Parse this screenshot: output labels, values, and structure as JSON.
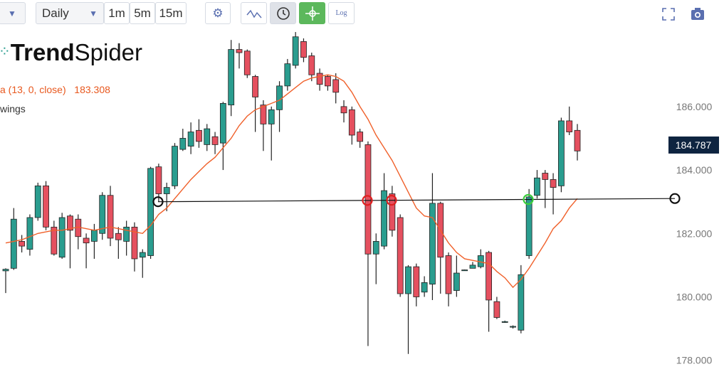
{
  "toolbar": {
    "timeframe": "Daily",
    "intervals": [
      "1m",
      "5m",
      "15m"
    ],
    "log": "Log"
  },
  "logo": {
    "bold": "Trend",
    "light": "Spider"
  },
  "legend": {
    "indicator": "a (13, 0, close)",
    "indicator_value": 183.308,
    "drawings": "wings"
  },
  "chart_data": {
    "type": "candlestick",
    "open": [
      180.82,
      180.9,
      181.75,
      181.5,
      182.5,
      183.5,
      182.2,
      181.25,
      182.55,
      182.45,
      181.85,
      181.75,
      182.0,
      183.2,
      182.0,
      181.75,
      182.2,
      181.25,
      181.3,
      184.1,
      183.25,
      183.5,
      184.65,
      184.75,
      185.25,
      184.8,
      185.05,
      184.85,
      186.05,
      187.8,
      187.75,
      186.95,
      186.05,
      185.45,
      185.9,
      186.65,
      187.3,
      188.05,
      187.6,
      187.05,
      186.95,
      186.85,
      186.0,
      185.9,
      185.2,
      184.8,
      181.35,
      181.6,
      183.25,
      182.5,
      180.1,
      180.95,
      180.15,
      180.4,
      182.95,
      181.3,
      180.2,
      180.83,
      180.9,
      180.95,
      181.4,
      179.85,
      179.2,
      179.05,
      178.95,
      181.3,
      183.2,
      183.9,
      183.7,
      183.5,
      185.55,
      185.25
    ],
    "high": [
      180.9,
      182.8,
      181.95,
      182.6,
      183.6,
      183.65,
      182.4,
      182.65,
      182.6,
      182.6,
      182.0,
      182.3,
      183.3,
      183.5,
      182.2,
      182.4,
      182.35,
      181.5,
      184.1,
      184.2,
      183.6,
      184.85,
      185.3,
      185.5,
      185.6,
      185.45,
      185.2,
      186.15,
      188.1,
      188.0,
      187.8,
      187.0,
      186.2,
      186.0,
      186.8,
      187.5,
      188.35,
      188.15,
      187.7,
      187.2,
      187.0,
      187.05,
      186.2,
      186.0,
      185.3,
      184.9,
      182.0,
      183.9,
      183.5,
      182.6,
      181.0,
      181.05,
      180.65,
      183.9,
      183.0,
      181.4,
      181.3,
      180.86,
      181.1,
      181.5,
      181.45,
      180.0,
      179.25,
      179.1,
      181.0,
      183.4,
      184.0,
      184.0,
      183.9,
      185.65,
      186.0,
      185.45
    ],
    "low": [
      180.12,
      180.85,
      181.4,
      181.3,
      182.4,
      182.1,
      181.3,
      181.2,
      180.9,
      181.5,
      180.9,
      181.2,
      181.8,
      181.6,
      181.2,
      181.3,
      180.8,
      180.6,
      181.2,
      183.0,
      182.7,
      183.4,
      184.6,
      184.5,
      184.7,
      184.6,
      184.5,
      184.0,
      185.7,
      187.2,
      186.9,
      185.2,
      184.6,
      184.3,
      185.2,
      186.5,
      187.2,
      187.4,
      186.8,
      186.5,
      186.5,
      186.1,
      185.5,
      184.8,
      184.7,
      178.45,
      180.4,
      181.5,
      181.9,
      180.0,
      178.2,
      179.7,
      180.0,
      179.9,
      180.1,
      179.7,
      180.0,
      180.82,
      180.9,
      180.9,
      178.9,
      179.3,
      179.18,
      179.0,
      178.85,
      181.2,
      183.1,
      182.8,
      182.6,
      183.3,
      185.1,
      184.3
    ],
    "close": [
      180.87,
      182.45,
      181.6,
      182.5,
      183.5,
      182.2,
      181.35,
      182.5,
      182.1,
      181.9,
      181.7,
      182.1,
      183.2,
      181.85,
      181.8,
      182.2,
      181.2,
      181.4,
      184.05,
      183.25,
      183.45,
      184.75,
      185.0,
      185.2,
      184.9,
      185.3,
      184.8,
      186.1,
      187.8,
      187.7,
      187.0,
      186.3,
      185.45,
      185.9,
      186.65,
      187.35,
      188.2,
      187.55,
      187.0,
      186.7,
      186.65,
      186.45,
      185.8,
      185.1,
      184.9,
      181.35,
      181.75,
      183.35,
      182.1,
      180.1,
      180.95,
      180.0,
      180.45,
      182.95,
      181.25,
      180.1,
      180.75,
      180.85,
      181.0,
      181.3,
      179.9,
      179.35,
      179.22,
      179.07,
      180.7,
      183.15,
      183.75,
      183.7,
      183.45,
      185.55,
      185.2,
      184.6
    ],
    "sma": [
      181.7,
      181.75,
      181.8,
      181.9,
      182.0,
      182.05,
      182.1,
      182.1,
      182.15,
      182.2,
      182.15,
      182.1,
      182.15,
      182.2,
      182.15,
      182.1,
      182.05,
      182.0,
      182.25,
      182.6,
      182.8,
      183.1,
      183.4,
      183.7,
      183.95,
      184.2,
      184.4,
      184.7,
      185.0,
      185.4,
      185.7,
      185.9,
      186.0,
      186.1,
      186.2,
      186.4,
      186.6,
      186.8,
      186.9,
      186.95,
      187.0,
      186.95,
      186.8,
      186.45,
      186.0,
      185.6,
      185.1,
      184.7,
      184.3,
      183.8,
      183.3,
      182.8,
      182.55,
      182.5,
      182.1,
      181.7,
      181.4,
      181.2,
      181.15,
      181.1,
      181.05,
      180.8,
      180.6,
      180.3,
      180.55,
      180.9,
      181.3,
      181.7,
      182.15,
      182.4,
      182.8,
      183.1
    ],
    "up_color": "#2a9d8f",
    "down_color": "#e5505f",
    "sma_color": "#f0602a",
    "trendline": [
      183.0,
      183.1
    ],
    "last_price": 184.787,
    "ylim": [
      177.41,
      189.36
    ],
    "yticks": [
      {
        "value": 178,
        "label": "178.000"
      },
      {
        "value": 180,
        "label": "180.000"
      },
      {
        "value": 182,
        "label": "182.000"
      },
      {
        "value": 184,
        "label": "184.000"
      },
      {
        "value": 186,
        "label": "186.000"
      }
    ]
  }
}
